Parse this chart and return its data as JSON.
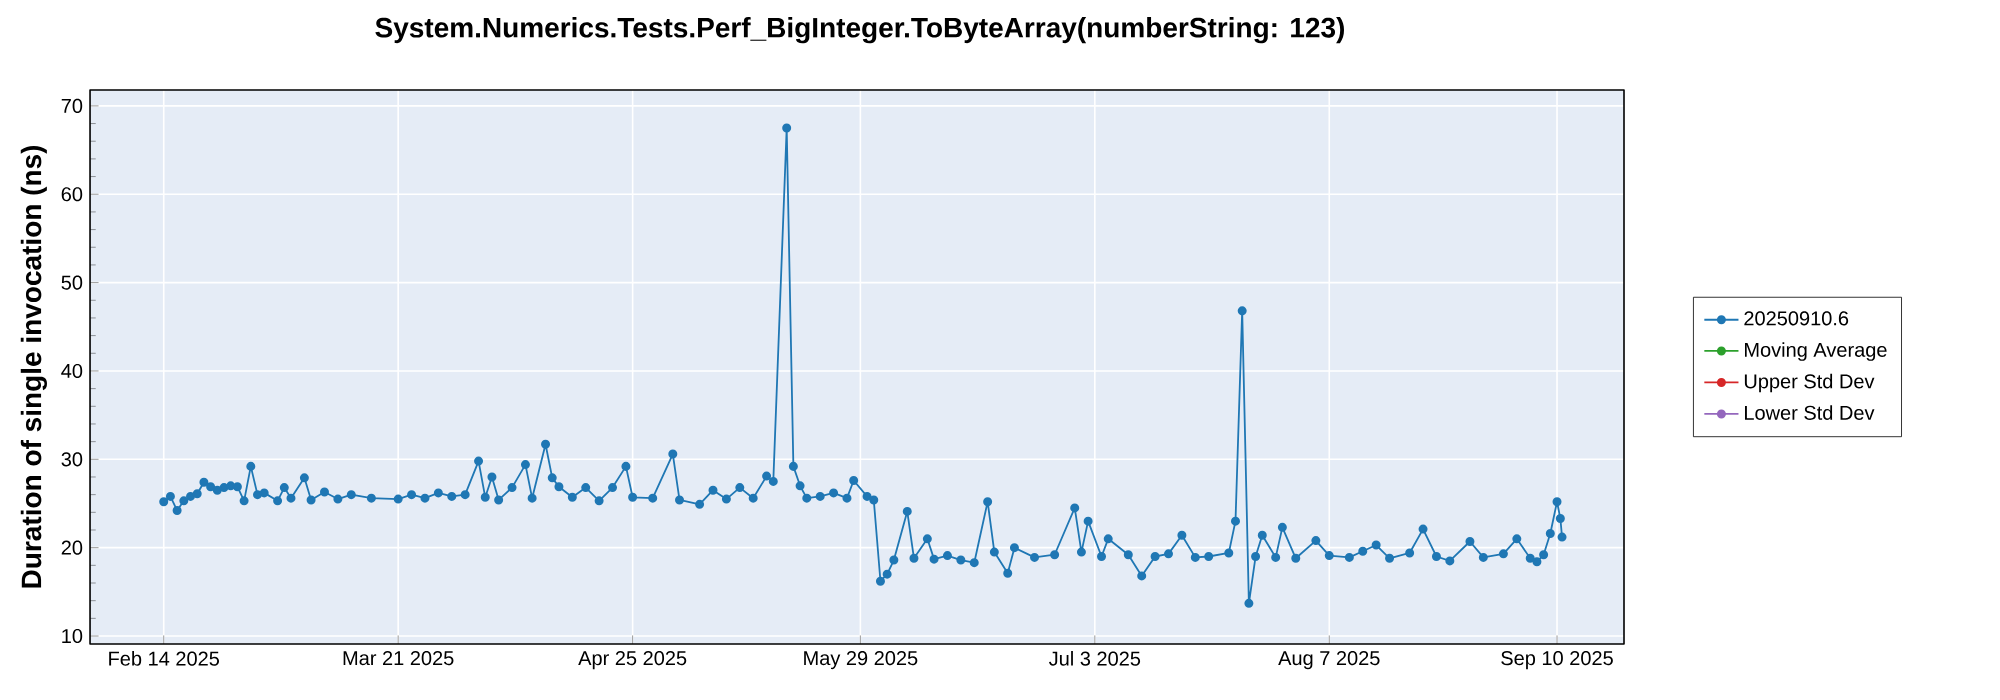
{
  "chart_data": {
    "type": "line",
    "title": "System.Numerics.Tests.Perf_BigInteger.ToByteArray(numberString: 123)",
    "ylabel": "Duration of single invocation (ns)",
    "xlim": [
      "2025-02-03",
      "2025-09-20"
    ],
    "ylim": [
      9.1,
      71.8
    ],
    "xticks": [
      {
        "value": "2025-02-14",
        "label": "Feb 14 2025"
      },
      {
        "value": "2025-03-21",
        "label": "Mar 21 2025"
      },
      {
        "value": "2025-04-25",
        "label": "Apr 25 2025"
      },
      {
        "value": "2025-05-29",
        "label": "May 29 2025"
      },
      {
        "value": "2025-07-03",
        "label": "Jul 3 2025"
      },
      {
        "value": "2025-08-07",
        "label": "Aug 7 2025"
      },
      {
        "value": "2025-09-10",
        "label": "Sep 10 2025"
      }
    ],
    "yticks": [
      10,
      20,
      30,
      40,
      50,
      60,
      70
    ],
    "grid": true,
    "legend": "right",
    "marker": "circle",
    "series": [
      {
        "name": "20250910.6",
        "color": "#1f77b4",
        "x": [
          "2025-02-14",
          "2025-02-15",
          "2025-02-16",
          "2025-02-17",
          "2025-02-18",
          "2025-02-19",
          "2025-02-20",
          "2025-02-21",
          "2025-02-22",
          "2025-02-23",
          "2025-02-24",
          "2025-02-25",
          "2025-02-26",
          "2025-02-27",
          "2025-02-28",
          "2025-03-01",
          "2025-03-03",
          "2025-03-04",
          "2025-03-05",
          "2025-03-07",
          "2025-03-08",
          "2025-03-10",
          "2025-03-12",
          "2025-03-14",
          "2025-03-17",
          "2025-03-21",
          "2025-03-23",
          "2025-03-25",
          "2025-03-27",
          "2025-03-29",
          "2025-03-31",
          "2025-04-02",
          "2025-04-03",
          "2025-04-04",
          "2025-04-05",
          "2025-04-07",
          "2025-04-09",
          "2025-04-10",
          "2025-04-12",
          "2025-04-13",
          "2025-04-14",
          "2025-04-16",
          "2025-04-18",
          "2025-04-20",
          "2025-04-22",
          "2025-04-24",
          "2025-04-25",
          "2025-04-28",
          "2025-05-01",
          "2025-05-02",
          "2025-05-05",
          "2025-05-07",
          "2025-05-09",
          "2025-05-11",
          "2025-05-13",
          "2025-05-15",
          "2025-05-16",
          "2025-05-18",
          "2025-05-19",
          "2025-05-20",
          "2025-05-21",
          "2025-05-23",
          "2025-05-25",
          "2025-05-27",
          "2025-05-28",
          "2025-05-30",
          "2025-05-31",
          "2025-06-01",
          "2025-06-02",
          "2025-06-03",
          "2025-06-05",
          "2025-06-06",
          "2025-06-08",
          "2025-06-09",
          "2025-06-11",
          "2025-06-13",
          "2025-06-15",
          "2025-06-17",
          "2025-06-18",
          "2025-06-20",
          "2025-06-21",
          "2025-06-24",
          "2025-06-27",
          "2025-06-30",
          "2025-07-01",
          "2025-07-02",
          "2025-07-04",
          "2025-07-05",
          "2025-07-08",
          "2025-07-10",
          "2025-07-12",
          "2025-07-14",
          "2025-07-16",
          "2025-07-18",
          "2025-07-20",
          "2025-07-23",
          "2025-07-24",
          "2025-07-25",
          "2025-07-26",
          "2025-07-27",
          "2025-07-28",
          "2025-07-30",
          "2025-07-31",
          "2025-08-02",
          "2025-08-05",
          "2025-08-07",
          "2025-08-10",
          "2025-08-12",
          "2025-08-14",
          "2025-08-16",
          "2025-08-19",
          "2025-08-21",
          "2025-08-23",
          "2025-08-25",
          "2025-08-28",
          "2025-08-30",
          "2025-09-02",
          "2025-09-04",
          "2025-09-06",
          "2025-09-07",
          "2025-09-08",
          "2025-09-09",
          "2025-09-10",
          "2025-09-10T12:00",
          "2025-09-10T18:00"
        ],
        "values": [
          25.2,
          25.8,
          24.2,
          25.3,
          25.8,
          26.1,
          27.4,
          26.9,
          26.5,
          26.8,
          27.0,
          26.9,
          25.3,
          29.2,
          26.0,
          26.2,
          25.3,
          26.8,
          25.6,
          27.9,
          25.4,
          26.3,
          25.5,
          26.0,
          25.6,
          25.5,
          26.0,
          25.6,
          26.2,
          25.8,
          26.0,
          29.8,
          25.7,
          28.0,
          25.4,
          26.8,
          29.4,
          25.6,
          31.7,
          27.9,
          26.9,
          25.7,
          26.8,
          25.3,
          26.8,
          29.2,
          25.7,
          25.6,
          30.6,
          25.4,
          24.9,
          26.5,
          25.5,
          26.8,
          25.6,
          28.1,
          27.5,
          67.5,
          29.2,
          27.0,
          25.6,
          25.8,
          26.2,
          25.6,
          27.6,
          25.8,
          25.4,
          16.2,
          17.0,
          18.6,
          24.1,
          18.8,
          21.0,
          18.7,
          19.1,
          18.6,
          18.3,
          25.2,
          19.5,
          17.1,
          20.0,
          18.9,
          19.2,
          24.5,
          19.5,
          23.0,
          19.0,
          21.0,
          19.2,
          16.8,
          19.0,
          19.3,
          21.4,
          18.9,
          19.0,
          19.4,
          23.0,
          46.8,
          13.7,
          19.0,
          21.4,
          18.9,
          22.3,
          18.8,
          20.8,
          19.1,
          18.9,
          19.6,
          20.3,
          18.8,
          19.4,
          22.1,
          19.0,
          18.5,
          20.7,
          18.9,
          19.3,
          21.0,
          18.8,
          18.4,
          19.2,
          21.6,
          25.2,
          23.3,
          21.2
        ]
      },
      {
        "name": "Moving Average",
        "color": "#2ca02c"
      },
      {
        "name": "Upper Std Dev",
        "color": "#d62728"
      },
      {
        "name": "Lower Std Dev",
        "color": "#9467bd"
      }
    ]
  }
}
